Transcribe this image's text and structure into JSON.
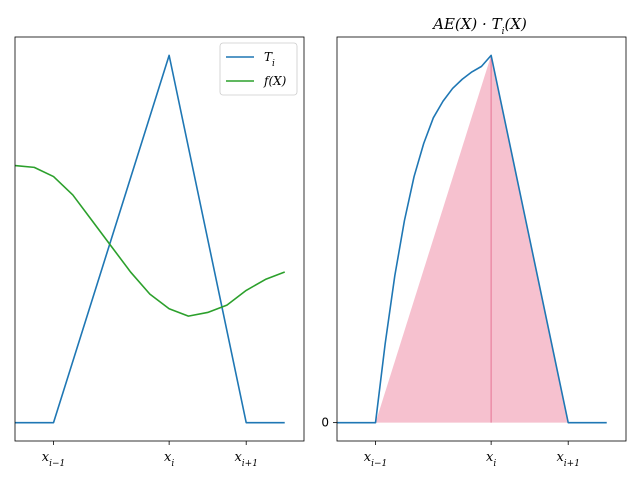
{
  "chart_data": [
    {
      "type": "line",
      "title": "",
      "xlabel": "",
      "ylabel": "",
      "xlim": [
        -0.2,
        1.3
      ],
      "ylim": [
        -0.05,
        1.05
      ],
      "x_ticks": [
        0,
        0.6,
        1.0
      ],
      "x_tick_labels": [
        "x_{i-1}",
        "x_i",
        "x_{i+1}"
      ],
      "y_ticks": [],
      "legend_position": "upper right",
      "series": [
        {
          "name": "T_i",
          "color": "#1f77b4",
          "x": [
            -0.2,
            0.0,
            0.6,
            1.0,
            1.2
          ],
          "y": [
            0.0,
            0.0,
            1.0,
            0.0,
            0.0
          ]
        },
        {
          "name": "f(X)",
          "color": "#2ca02c",
          "x": [
            -0.2,
            -0.1,
            0.0,
            0.1,
            0.2,
            0.3,
            0.4,
            0.5,
            0.6,
            0.7,
            0.8,
            0.9,
            1.0,
            1.1,
            1.2
          ],
          "y": [
            0.7,
            0.695,
            0.67,
            0.62,
            0.55,
            0.48,
            0.41,
            0.35,
            0.31,
            0.29,
            0.3,
            0.32,
            0.36,
            0.39,
            0.41
          ]
        }
      ]
    },
    {
      "type": "line",
      "title": "AE(X) · T_i(X)",
      "xlabel": "",
      "ylabel": "",
      "xlim": [
        -0.2,
        1.3
      ],
      "ylim": [
        -0.05,
        1.05
      ],
      "x_ticks": [
        0,
        0.6,
        1.0
      ],
      "x_tick_labels": [
        "x_{i-1}",
        "x_i",
        "x_{i+1}"
      ],
      "y_ticks": [
        0
      ],
      "y_tick_labels": [
        "0"
      ],
      "series": [
        {
          "name": "",
          "color": "#1f77b4",
          "x": [
            -0.2,
            0.0,
            0.05,
            0.1,
            0.15,
            0.2,
            0.25,
            0.3,
            0.35,
            0.4,
            0.45,
            0.5,
            0.55,
            0.6,
            0.7,
            0.8,
            0.9,
            1.0,
            1.2
          ],
          "y": [
            0.0,
            0.0,
            0.215,
            0.4,
            0.55,
            0.67,
            0.76,
            0.83,
            0.875,
            0.91,
            0.935,
            0.955,
            0.97,
            1.0,
            0.75,
            0.5,
            0.25,
            0.0,
            0.0
          ]
        }
      ],
      "shaded_region": {
        "color": "#f4b6c7",
        "x": [
          0.0,
          0.6,
          1.0
        ],
        "y": [
          0.0,
          1.0,
          0.0
        ]
      },
      "vertical_line": {
        "x": 0.6,
        "y_top": 1.0,
        "color": "#e8809e"
      }
    }
  ]
}
